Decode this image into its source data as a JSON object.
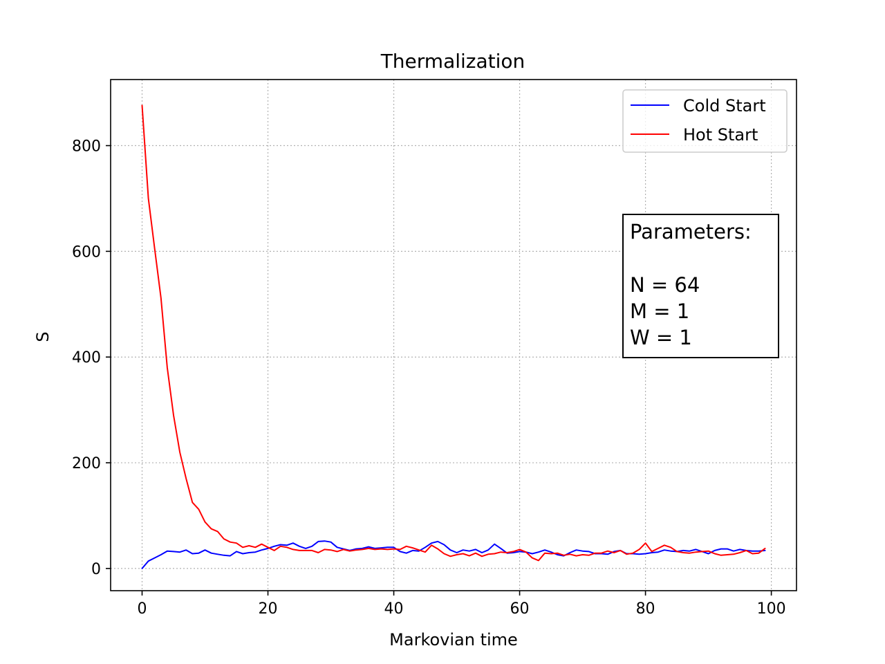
{
  "chart_data": {
    "type": "line",
    "title": "Thermalization",
    "xlabel": "Markovian time",
    "ylabel": "S",
    "xlim": [
      -5,
      104
    ],
    "ylim": [
      -42,
      925
    ],
    "xticks": [
      0,
      20,
      40,
      60,
      80,
      100
    ],
    "yticks": [
      0,
      200,
      400,
      600,
      800
    ],
    "grid": true,
    "legend": "top-right",
    "series": [
      {
        "name": "Cold Start",
        "color": "#0000ff",
        "x": [
          0,
          1,
          2,
          3,
          4,
          5,
          6,
          7,
          8,
          9,
          10,
          11,
          12,
          13,
          14,
          15,
          16,
          17,
          18,
          19,
          20,
          21,
          22,
          23,
          24,
          25,
          26,
          27,
          28,
          29,
          30,
          31,
          32,
          33,
          34,
          35,
          36,
          37,
          38,
          39,
          40,
          41,
          42,
          43,
          44,
          45,
          46,
          47,
          48,
          49,
          50,
          51,
          52,
          53,
          54,
          55,
          56,
          57,
          58,
          59,
          60,
          61,
          62,
          63,
          64,
          65,
          66,
          67,
          68,
          69,
          70,
          71,
          72,
          73,
          74,
          75,
          76,
          77,
          78,
          79,
          80,
          81,
          82,
          83,
          84,
          85,
          86,
          87,
          88,
          89,
          90,
          91,
          92,
          93,
          94,
          95,
          96,
          97,
          98,
          99
        ],
        "y": [
          0,
          14,
          20,
          26,
          33,
          32,
          31,
          35,
          28,
          29,
          35,
          29,
          27,
          25,
          24,
          32,
          28,
          30,
          31,
          35,
          38,
          42,
          45,
          44,
          48,
          42,
          38,
          42,
          51,
          52,
          50,
          40,
          37,
          34,
          37,
          38,
          41,
          38,
          39,
          40,
          40,
          32,
          29,
          34,
          33,
          40,
          48,
          51,
          45,
          35,
          30,
          35,
          33,
          36,
          30,
          35,
          46,
          38,
          29,
          30,
          32,
          31,
          28,
          31,
          35,
          31,
          26,
          24,
          30,
          35,
          33,
          32,
          28,
          28,
          27,
          32,
          34,
          28,
          28,
          27,
          28,
          30,
          31,
          35,
          33,
          32,
          34,
          33,
          36,
          32,
          28,
          34,
          37,
          37,
          33,
          36,
          34,
          33,
          33,
          34
        ]
      },
      {
        "name": "Hot Start",
        "color": "#ff0000",
        "x": [
          0,
          1,
          2,
          3,
          4,
          5,
          6,
          7,
          8,
          9,
          10,
          11,
          12,
          13,
          14,
          15,
          16,
          17,
          18,
          19,
          20,
          21,
          22,
          23,
          24,
          25,
          26,
          27,
          28,
          29,
          30,
          31,
          32,
          33,
          34,
          35,
          36,
          37,
          38,
          39,
          40,
          41,
          42,
          43,
          44,
          45,
          46,
          47,
          48,
          49,
          50,
          51,
          52,
          53,
          54,
          55,
          56,
          57,
          58,
          59,
          60,
          61,
          62,
          63,
          64,
          65,
          66,
          67,
          68,
          69,
          70,
          71,
          72,
          73,
          74,
          75,
          76,
          77,
          78,
          79,
          80,
          81,
          82,
          83,
          84,
          85,
          86,
          87,
          88,
          89,
          90,
          91,
          92,
          93,
          94,
          95,
          96,
          97,
          98,
          99
        ],
        "y": [
          876,
          700,
          605,
          512,
          380,
          290,
          220,
          170,
          125,
          112,
          88,
          75,
          70,
          56,
          50,
          48,
          40,
          43,
          40,
          46,
          40,
          34,
          42,
          40,
          36,
          34,
          34,
          34,
          30,
          36,
          35,
          32,
          36,
          33,
          35,
          36,
          38,
          36,
          37,
          36,
          37,
          36,
          42,
          39,
          35,
          31,
          44,
          37,
          28,
          23,
          26,
          28,
          24,
          29,
          23,
          27,
          28,
          31,
          30,
          32,
          36,
          31,
          20,
          15,
          29,
          28,
          29,
          25,
          27,
          24,
          26,
          25,
          29,
          29,
          33,
          30,
          34,
          27,
          29,
          36,
          48,
          32,
          38,
          44,
          40,
          32,
          30,
          29,
          31,
          32,
          33,
          28,
          25,
          26,
          27,
          30,
          34,
          28,
          29,
          38
        ]
      }
    ],
    "annotation": {
      "lines": [
        "Parameters:",
        "",
        "N = 64",
        "M = 1",
        "W = 1"
      ]
    }
  }
}
